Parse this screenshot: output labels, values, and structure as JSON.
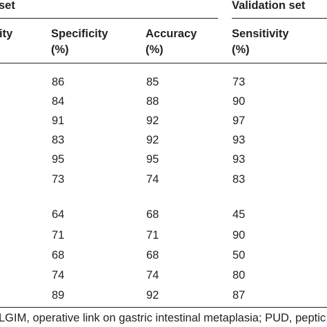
{
  "table": {
    "groups": [
      {
        "label": "set"
      },
      {
        "label": "Validation set"
      }
    ],
    "columns": [
      {
        "line1": "ity",
        "line2": ""
      },
      {
        "line1": "Specificity",
        "line2": "(%)"
      },
      {
        "line1": "Accuracy",
        "line2": "(%)"
      },
      {
        "line1": "Sensitivity",
        "line2": "(%)"
      }
    ],
    "rows": [
      {
        "specificity": "86",
        "accuracy": "85",
        "sensitivity": "73"
      },
      {
        "specificity": "84",
        "accuracy": "88",
        "sensitivity": "90"
      },
      {
        "specificity": "91",
        "accuracy": "92",
        "sensitivity": "97"
      },
      {
        "specificity": "83",
        "accuracy": "92",
        "sensitivity": "93"
      },
      {
        "specificity": "95",
        "accuracy": "95",
        "sensitivity": "93"
      },
      {
        "specificity": "73",
        "accuracy": "74",
        "sensitivity": "83"
      },
      {
        "specificity": "64",
        "accuracy": "68",
        "sensitivity": "45"
      },
      {
        "specificity": "71",
        "accuracy": "71",
        "sensitivity": "90"
      },
      {
        "specificity": "68",
        "accuracy": "68",
        "sensitivity": "50"
      },
      {
        "specificity": "74",
        "accuracy": "74",
        "sensitivity": "80"
      },
      {
        "specificity": "89",
        "accuracy": "92",
        "sensitivity": "87"
      }
    ]
  },
  "footnote": "LGIM, operative link on gastric intestinal metaplasia; PUD, peptic ul"
}
